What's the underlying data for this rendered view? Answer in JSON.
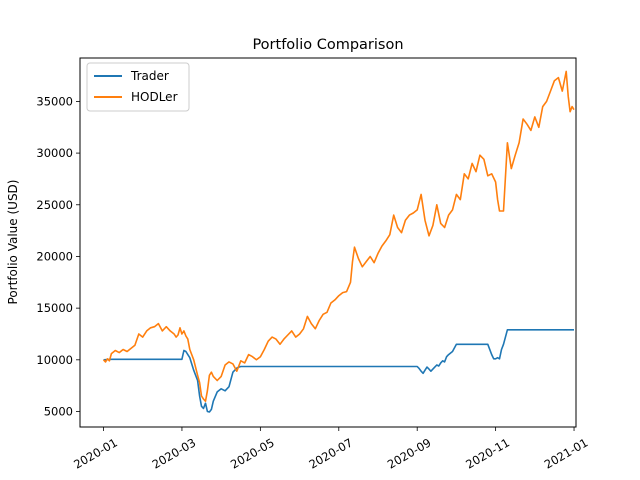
{
  "chart_data": {
    "type": "line",
    "title": "Portfolio Comparison",
    "xlabel": "",
    "ylabel": "Portfolio Value (USD)",
    "x_unit": "months since 2020-01-01",
    "xlim": [
      -0.6,
      12.05
    ],
    "ylim": [
      3500,
      39200
    ],
    "x_ticks": [
      {
        "value": 0,
        "label": "2020-01"
      },
      {
        "value": 2,
        "label": "2020-03"
      },
      {
        "value": 4,
        "label": "2020-05"
      },
      {
        "value": 6,
        "label": "2020-07"
      },
      {
        "value": 8,
        "label": "2020-09"
      },
      {
        "value": 10,
        "label": "2020-11"
      },
      {
        "value": 12,
        "label": "2021-01"
      }
    ],
    "y_ticks": [
      {
        "value": 5000,
        "label": "5000"
      },
      {
        "value": 10000,
        "label": "10000"
      },
      {
        "value": 15000,
        "label": "15000"
      },
      {
        "value": 20000,
        "label": "20000"
      },
      {
        "value": 25000,
        "label": "25000"
      },
      {
        "value": 30000,
        "label": "30000"
      },
      {
        "value": 35000,
        "label": "35000"
      }
    ],
    "grid": false,
    "legend": {
      "placement": "top-left"
    },
    "series": [
      {
        "name": "Trader",
        "color": "#1f77b4",
        "x": [
          0,
          0.2,
          0.5,
          1.0,
          1.5,
          1.9,
          1.95,
          2.0,
          2.05,
          2.1,
          2.15,
          2.2,
          2.3,
          2.4,
          2.45,
          2.5,
          2.55,
          2.6,
          2.65,
          2.7,
          2.75,
          2.8,
          2.9,
          3.0,
          3.1,
          3.2,
          3.3,
          3.4,
          3.45,
          3.5,
          3.6,
          4.0,
          5.0,
          6.0,
          7.0,
          8.0,
          8.05,
          8.1,
          8.15,
          8.2,
          8.25,
          8.3,
          8.35,
          8.4,
          8.45,
          8.5,
          8.55,
          8.6,
          8.65,
          8.7,
          8.75,
          8.8,
          8.9,
          9.0,
          9.05,
          9.1,
          9.3,
          9.5,
          9.8,
          9.9,
          9.95,
          10.0,
          10.05,
          10.1,
          10.15,
          10.2,
          10.3,
          11.0,
          11.5,
          12.0
        ],
        "y": [
          10000,
          10050,
          10050,
          10050,
          10050,
          10050,
          10050,
          10050,
          10900,
          10800,
          10500,
          10200,
          9000,
          8000,
          6500,
          5500,
          5300,
          5800,
          5000,
          4950,
          5200,
          6000,
          6900,
          7200,
          7000,
          7400,
          8800,
          9200,
          9300,
          9350,
          9350,
          9350,
          9350,
          9350,
          9350,
          9350,
          9150,
          8900,
          8700,
          9000,
          9300,
          9100,
          8900,
          9100,
          9300,
          9500,
          9400,
          9700,
          9900,
          9800,
          10300,
          10500,
          10800,
          11500,
          11500,
          11500,
          11500,
          11500,
          11500,
          10500,
          10100,
          10100,
          10200,
          10100,
          11000,
          11500,
          12900,
          12900,
          12900,
          12900
        ]
      },
      {
        "name": "HODLer",
        "color": "#ff7f0e",
        "x": [
          0,
          0.05,
          0.1,
          0.15,
          0.2,
          0.3,
          0.4,
          0.5,
          0.6,
          0.7,
          0.8,
          0.9,
          1.0,
          1.1,
          1.2,
          1.3,
          1.4,
          1.5,
          1.6,
          1.7,
          1.8,
          1.85,
          1.9,
          1.95,
          2.0,
          2.05,
          2.1,
          2.15,
          2.2,
          2.3,
          2.4,
          2.45,
          2.5,
          2.55,
          2.6,
          2.65,
          2.7,
          2.75,
          2.8,
          2.9,
          3.0,
          3.1,
          3.2,
          3.3,
          3.4,
          3.5,
          3.6,
          3.7,
          3.8,
          3.9,
          4.0,
          4.1,
          4.2,
          4.3,
          4.4,
          4.5,
          4.6,
          4.7,
          4.8,
          4.9,
          5.0,
          5.1,
          5.2,
          5.3,
          5.4,
          5.5,
          5.6,
          5.7,
          5.8,
          5.9,
          6.0,
          6.1,
          6.2,
          6.3,
          6.35,
          6.4,
          6.5,
          6.6,
          6.7,
          6.8,
          6.9,
          7.0,
          7.1,
          7.2,
          7.3,
          7.4,
          7.5,
          7.6,
          7.7,
          7.8,
          7.9,
          8.0,
          8.1,
          8.2,
          8.3,
          8.4,
          8.5,
          8.6,
          8.7,
          8.8,
          8.9,
          9.0,
          9.1,
          9.2,
          9.3,
          9.4,
          9.5,
          9.6,
          9.7,
          9.8,
          9.9,
          10.0,
          10.05,
          10.1,
          10.2,
          10.3,
          10.4,
          10.5,
          10.6,
          10.7,
          10.8,
          10.9,
          11.0,
          11.1,
          11.2,
          11.3,
          11.4,
          11.5,
          11.6,
          11.7,
          11.8,
          11.85,
          11.9,
          11.95,
          12.0
        ],
        "y": [
          10000,
          9800,
          10100,
          9900,
          10600,
          10900,
          10700,
          11000,
          10800,
          11100,
          11400,
          12500,
          12200,
          12800,
          13100,
          13200,
          13500,
          12800,
          13200,
          12800,
          12500,
          12200,
          12400,
          13100,
          12500,
          12800,
          12300,
          12000,
          11000,
          10000,
          8500,
          7800,
          6500,
          6200,
          6000,
          7000,
          8500,
          8800,
          8400,
          8000,
          8400,
          9500,
          9800,
          9600,
          8900,
          9900,
          9700,
          10500,
          10300,
          10000,
          10300,
          11000,
          11800,
          12200,
          12000,
          11500,
          12000,
          12400,
          12800,
          12200,
          12500,
          13000,
          14200,
          13500,
          13000,
          13800,
          14400,
          14600,
          15500,
          15800,
          16200,
          16500,
          16600,
          17500,
          19500,
          20900,
          19800,
          19000,
          19500,
          20000,
          19400,
          20300,
          21000,
          21500,
          22100,
          24000,
          22800,
          22300,
          23500,
          24000,
          24200,
          24500,
          26000,
          23500,
          22000,
          23000,
          25000,
          23200,
          22800,
          24000,
          24500,
          26000,
          25500,
          28000,
          27500,
          29000,
          28200,
          29800,
          29400,
          27800,
          28000,
          27200,
          25500,
          24400,
          24400,
          31000,
          28500,
          29800,
          31000,
          33300,
          32800,
          32200,
          33500,
          32500,
          34500,
          35000,
          36000,
          37000,
          37300,
          36000,
          37900,
          35500,
          34000,
          34500,
          34200
        ]
      }
    ]
  }
}
